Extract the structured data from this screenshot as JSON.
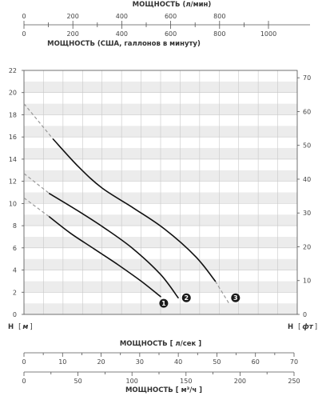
{
  "chart_data": {
    "type": "line",
    "title": "",
    "axes": {
      "top_lpm": {
        "label": "МОЩНОСТЬ (л/мин)",
        "min": 0,
        "max": 1000,
        "ticks": [
          "0",
          "200",
          "400",
          "600",
          "800"
        ]
      },
      "top_gpm": {
        "label": "МОЩНОСТЬ (США, галлонов в минуту)",
        "min": 0,
        "max": 1000,
        "ticks": [
          "0",
          "200",
          "400",
          "600",
          "800",
          "1000"
        ]
      },
      "left_m": {
        "label_prefix": "H",
        "label_unit": "м",
        "min": 0,
        "max": 22,
        "ticks": [
          "0",
          "2",
          "4",
          "6",
          "8",
          "10",
          "12",
          "14",
          "16",
          "18",
          "20",
          "22"
        ]
      },
      "right_ft": {
        "label_prefix": "H",
        "label_unit": "фт",
        "min": 0,
        "max": 70,
        "ticks": [
          "0",
          "10",
          "20",
          "30",
          "40",
          "50",
          "60",
          "70"
        ]
      },
      "bottom_ls": {
        "label": "МОЩНОСТЬ [ л/сек ]",
        "min": 0,
        "max": 70,
        "ticks": [
          "0",
          "10",
          "20",
          "30",
          "40",
          "50",
          "60",
          "70"
        ]
      },
      "bottom_m3h": {
        "label": "МОЩНОСТЬ [ м³/ч ]",
        "min": 0,
        "max": 250,
        "ticks": [
          "0",
          "50",
          "100",
          "150",
          "200",
          "250"
        ]
      }
    },
    "x_unit": "l/s",
    "grid": true,
    "series": [
      {
        "id": "1",
        "marker": "1",
        "color": "#111111",
        "dashed": [
          [
            0,
            10.5
          ],
          [
            6.5,
            8.8
          ]
        ],
        "solid": [
          [
            6.5,
            8.8
          ],
          [
            12,
            7.3
          ],
          [
            18,
            5.9
          ],
          [
            24,
            4.5
          ],
          [
            30,
            3.0
          ],
          [
            35,
            1.6
          ]
        ]
      },
      {
        "id": "2",
        "marker": "2",
        "color": "#111111",
        "dashed": [
          [
            0,
            12.7
          ],
          [
            6.5,
            10.9
          ]
        ],
        "solid": [
          [
            6.5,
            10.9
          ],
          [
            14,
            9.3
          ],
          [
            21,
            7.7
          ],
          [
            28,
            5.9
          ],
          [
            35,
            3.6
          ],
          [
            39.5,
            1.5
          ]
        ]
      },
      {
        "id": "3",
        "marker": "3",
        "color": "#111111",
        "dashed_start": [
          [
            0,
            19.0
          ],
          [
            7.5,
            15.8
          ]
        ],
        "solid": [
          [
            7.5,
            15.8
          ],
          [
            14,
            13.3
          ],
          [
            20,
            11.4
          ],
          [
            28,
            9.6
          ],
          [
            36,
            7.7
          ],
          [
            44,
            5.2
          ],
          [
            49,
            3.0
          ]
        ],
        "dashed_end": [
          [
            49,
            3.0
          ],
          [
            52.5,
            1.0
          ]
        ]
      }
    ],
    "marker_positions": [
      [
        35.8,
        1.0
      ],
      [
        41.6,
        1.5
      ],
      [
        54.2,
        1.5
      ]
    ]
  },
  "style": {
    "band_color": "#ececec",
    "grid_color": "#c8c8c8",
    "axis_color": "#555555",
    "curve_color": "#111111",
    "dash_color": "#999999",
    "marker_fill": "#1a1a1a"
  }
}
